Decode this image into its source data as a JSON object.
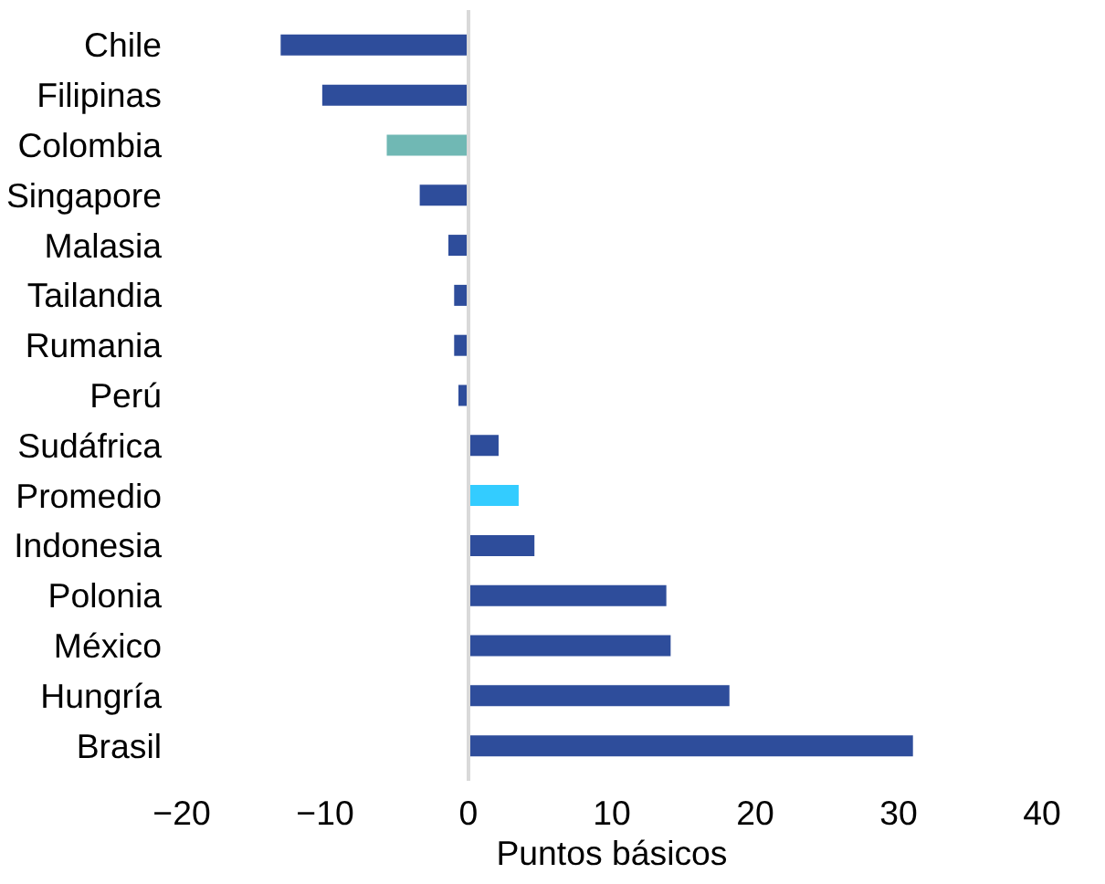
{
  "chart_data": {
    "type": "bar",
    "orientation": "horizontal",
    "xlabel": "Puntos básicos",
    "categories": [
      "Chile",
      "Filipinas",
      "Colombia",
      "Singapore",
      "Malasia",
      "Tailandia",
      "Rumania",
      "Perú",
      "Sudáfrica",
      "Promedio",
      "Indonesia",
      "Polonia",
      "México",
      "Hungría",
      "Brasil"
    ],
    "values": [
      -13.1,
      -10.2,
      -5.7,
      -3.4,
      -1.4,
      -1.0,
      -1.0,
      -0.7,
      2.1,
      3.5,
      4.6,
      13.8,
      14.1,
      18.2,
      31.0
    ],
    "colors": [
      "#2e4d9b",
      "#2e4d9b",
      "#70b8b4",
      "#2e4d9b",
      "#2e4d9b",
      "#2e4d9b",
      "#2e4d9b",
      "#2e4d9b",
      "#2e4d9b",
      "#33ccff",
      "#2e4d9b",
      "#2e4d9b",
      "#2e4d9b",
      "#2e4d9b",
      "#2e4d9b"
    ],
    "xlim": [
      -20,
      40
    ],
    "xticks": [
      -20,
      -10,
      0,
      10,
      20,
      30,
      40
    ],
    "ref_lines": [
      {
        "axis": "x",
        "value": 0,
        "color": "#d9d9d9"
      }
    ]
  }
}
